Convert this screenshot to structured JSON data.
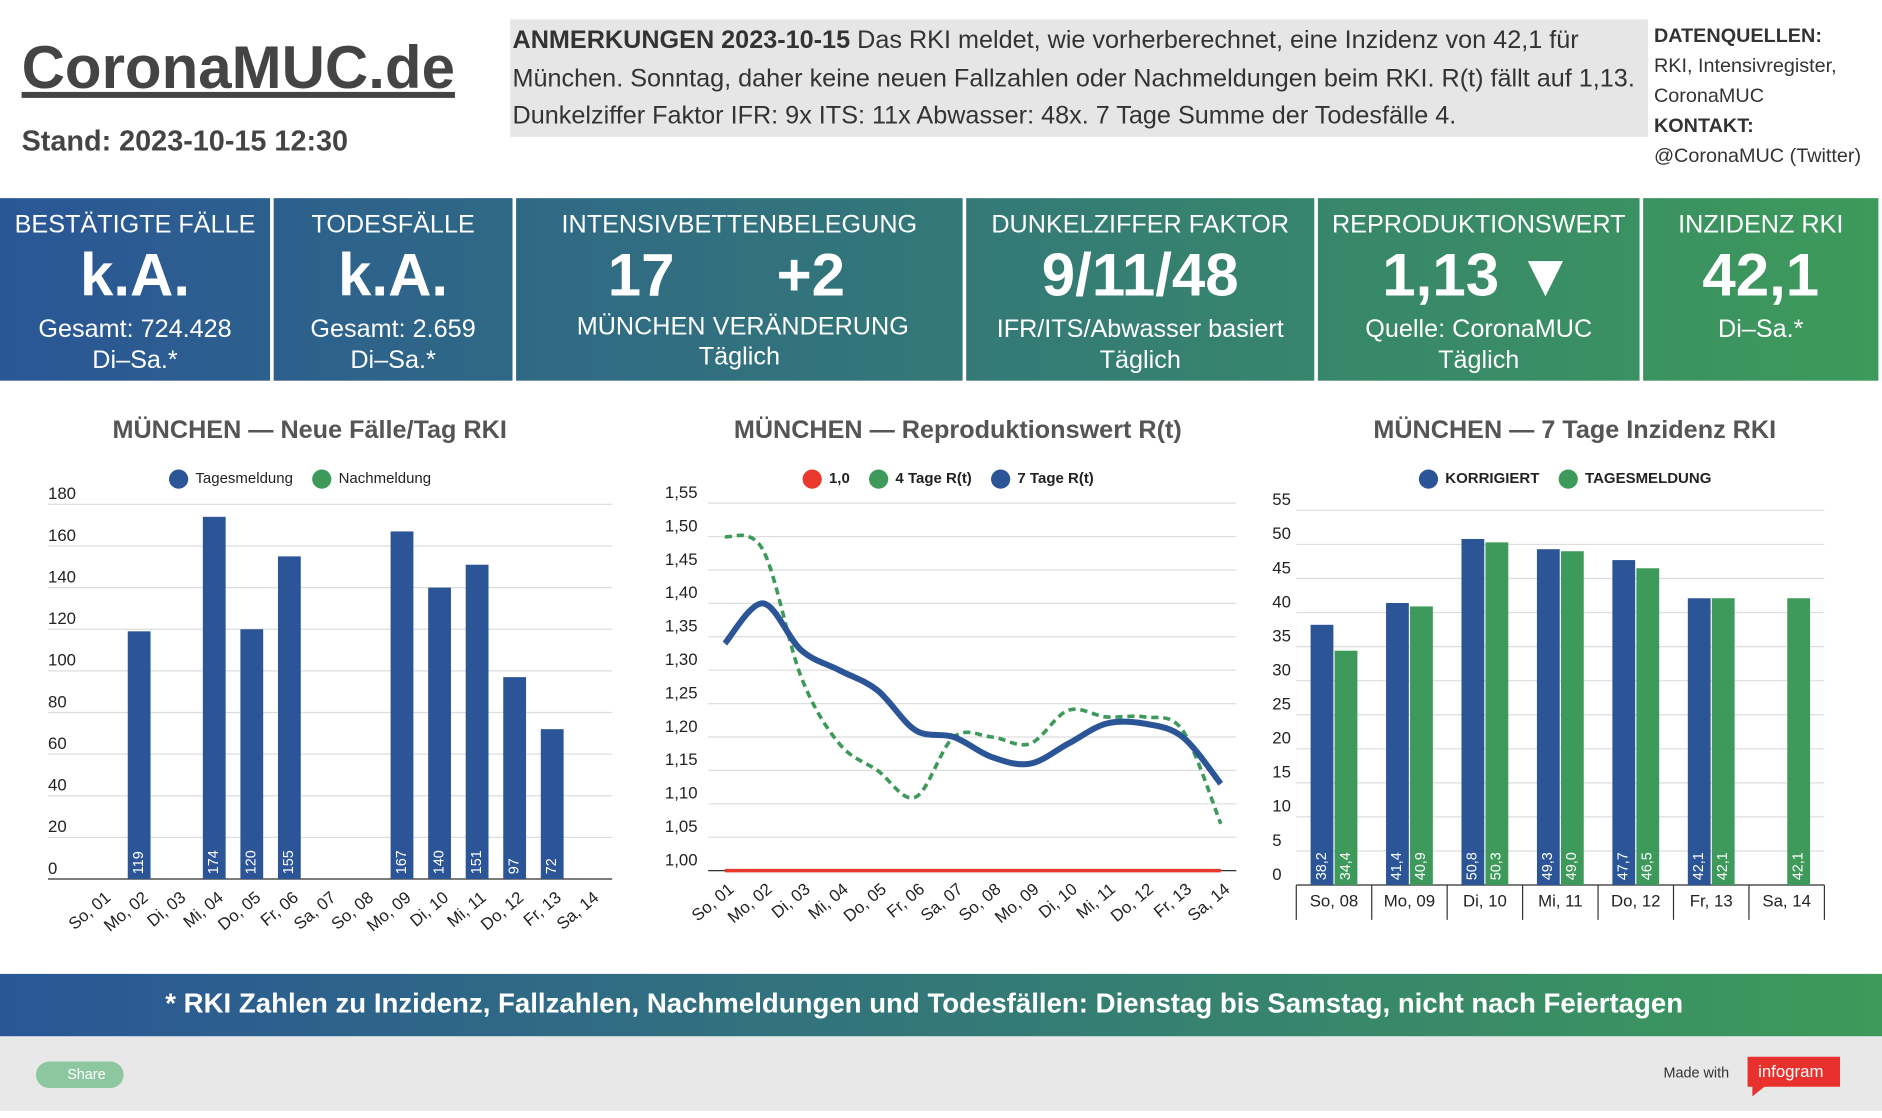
{
  "header": {
    "title": "CoronaMUC.de",
    "stand": "Stand: 2023-10-15 12:30",
    "notes_heading": "ANMERKUNGEN 2023-10-15",
    "notes_text": "Das RKI meldet, wie vorherberechnet, eine Inzidenz von 42,1 für München. Sonntag, daher keine neuen Fallzahlen oder Nachmeldungen beim RKI. R(t) fällt auf 1,13. Dunkelziffer Faktor IFR: 9x ITS: 11x Abwasser: 48x. 7 Tage Summe der Todesfälle 4.",
    "sources_heading": "DATENQUELLEN:",
    "sources_text": "RKI, Intensivregister, CoronaMUC",
    "contact_heading": "KONTAKT:",
    "contact_text": "@CoronaMUC (Twitter)"
  },
  "tiles": [
    {
      "heading": "BESTÄTIGTE FÄLLE",
      "main": "k.A.",
      "lines": [
        "Gesamt: 724.428",
        "Di–Sa.*"
      ]
    },
    {
      "heading": "TODESFÄLLE",
      "main": "k.A.",
      "lines": [
        "Gesamt: 2.659",
        "Di–Sa.*"
      ]
    },
    {
      "heading": "INTENSIVBETTENBELEGUNG",
      "columns": [
        {
          "value": "17",
          "label": "MÜNCHEN"
        },
        {
          "value": "+2",
          "label": "VERÄNDERUNG"
        }
      ],
      "lines": [
        "Täglich"
      ]
    },
    {
      "heading": "DUNKELZIFFER FAKTOR",
      "main": "9/11/48",
      "lines": [
        "IFR/ITS/Abwasser basiert",
        "Täglich"
      ]
    },
    {
      "heading": "REPRODUKTIONSWERT",
      "main": "1,13 ▼",
      "lines": [
        "Quelle: CoronaMUC",
        "Täglich"
      ]
    },
    {
      "heading": "INZIDENZ RKI",
      "main": "42,1",
      "lines": [
        "Di–Sa.*"
      ]
    }
  ],
  "chart_data": [
    {
      "type": "bar",
      "title": "MÜNCHEN — Neue Fälle/Tag RKI",
      "categories": [
        "So, 01",
        "Mo, 02",
        "Di, 03",
        "Mi, 04",
        "Do, 05",
        "Fr, 06",
        "Sa, 07",
        "So, 08",
        "Mo, 09",
        "Di, 10",
        "Mi, 11",
        "Do, 12",
        "Fr, 13",
        "Sa, 14"
      ],
      "series": [
        {
          "name": "Tagesmeldung",
          "color": "#2b5597",
          "values": [
            null,
            119,
            null,
            174,
            120,
            155,
            null,
            null,
            167,
            140,
            151,
            97,
            72,
            null
          ]
        },
        {
          "name": "Nachmeldung",
          "color": "#3d9a5a",
          "values": [
            null,
            null,
            null,
            null,
            null,
            null,
            null,
            null,
            null,
            null,
            null,
            null,
            null,
            null
          ]
        }
      ],
      "ylim": [
        0,
        180
      ],
      "yticks": [
        0,
        20,
        40,
        60,
        80,
        100,
        120,
        140,
        160,
        180
      ],
      "grid": true
    },
    {
      "type": "line",
      "title": "MÜNCHEN — Reproduktionswert R(t)",
      "categories": [
        "So, 01",
        "Mo, 02",
        "Di, 03",
        "Mi, 04",
        "Do, 05",
        "Fr, 06",
        "Sa, 07",
        "So, 08",
        "Mo, 09",
        "Di, 10",
        "Mi, 11",
        "Do, 12",
        "Fr, 13",
        "Sa, 14"
      ],
      "series": [
        {
          "name": "1,0",
          "color": "#e8392c",
          "values": [
            1,
            1,
            1,
            1,
            1,
            1,
            1,
            1,
            1,
            1,
            1,
            1,
            1,
            1
          ]
        },
        {
          "name": "4 Tage R(t)",
          "color": "#3d9a5a",
          "dashed": true,
          "values": [
            1.5,
            1.48,
            1.29,
            1.19,
            1.15,
            1.11,
            1.2,
            1.2,
            1.19,
            1.24,
            1.23,
            1.23,
            1.21,
            1.07
          ]
        },
        {
          "name": "7 Tage R(t)",
          "color": "#2b5597",
          "values": [
            1.34,
            1.4,
            1.33,
            1.3,
            1.27,
            1.21,
            1.2,
            1.17,
            1.16,
            1.19,
            1.22,
            1.22,
            1.2,
            1.13
          ]
        }
      ],
      "ylim": [
        1,
        1.55
      ],
      "yticks": [
        {
          "value": 1,
          "label": "1,00"
        },
        {
          "value": 1.05,
          "label": "1,05"
        },
        {
          "value": 1.1,
          "label": "1,10"
        },
        {
          "value": 1.15,
          "label": "1,15"
        },
        {
          "value": 1.2,
          "label": "1,20"
        },
        {
          "value": 1.25,
          "label": "1,25"
        },
        {
          "value": 1.3,
          "label": "1,30"
        },
        {
          "value": 1.35,
          "label": "1,35"
        },
        {
          "value": 1.4,
          "label": "1,40"
        },
        {
          "value": 1.45,
          "label": "1,45"
        },
        {
          "value": 1.5,
          "label": "1,50"
        },
        {
          "value": 1.55,
          "label": "1,55"
        }
      ],
      "grid": true
    },
    {
      "type": "grouped-bar",
      "title": "MÜNCHEN — 7 Tage Inzidenz RKI",
      "categories": [
        "So, 08",
        "Mo, 09",
        "Di, 10",
        "Mi, 11",
        "Do, 12",
        "Fr, 13",
        "Sa, 14"
      ],
      "series": [
        {
          "name": "KORRIGIERT",
          "color": "#2b5597",
          "values": [
            38.2,
            41.4,
            50.8,
            49.3,
            47.7,
            42.1,
            null
          ],
          "value_labels": [
            "38,2",
            "41,4",
            "50,8",
            "49,3",
            "47,7",
            "42,1",
            null
          ]
        },
        {
          "name": "TAGESMELDUNG",
          "color": "#3d9a5a",
          "values": [
            34.4,
            40.9,
            50.3,
            49.0,
            46.5,
            42.1,
            42.1
          ],
          "value_labels": [
            "34,4",
            "40,9",
            "50,3",
            "49,0",
            "46,5",
            "42,1",
            "42,1"
          ]
        }
      ],
      "ylim": [
        0,
        55
      ],
      "yticks": [
        0,
        5,
        10,
        15,
        20,
        25,
        30,
        35,
        40,
        45,
        50,
        55
      ],
      "grid": true
    }
  ],
  "footer": "* RKI Zahlen zu Inzidenz, Fallzahlen, Nachmeldungen und Todesfällen: Dienstag bis Samstag, nicht nach Feiertagen",
  "share": "Share",
  "made_with": "Made with",
  "brand": "infogram"
}
